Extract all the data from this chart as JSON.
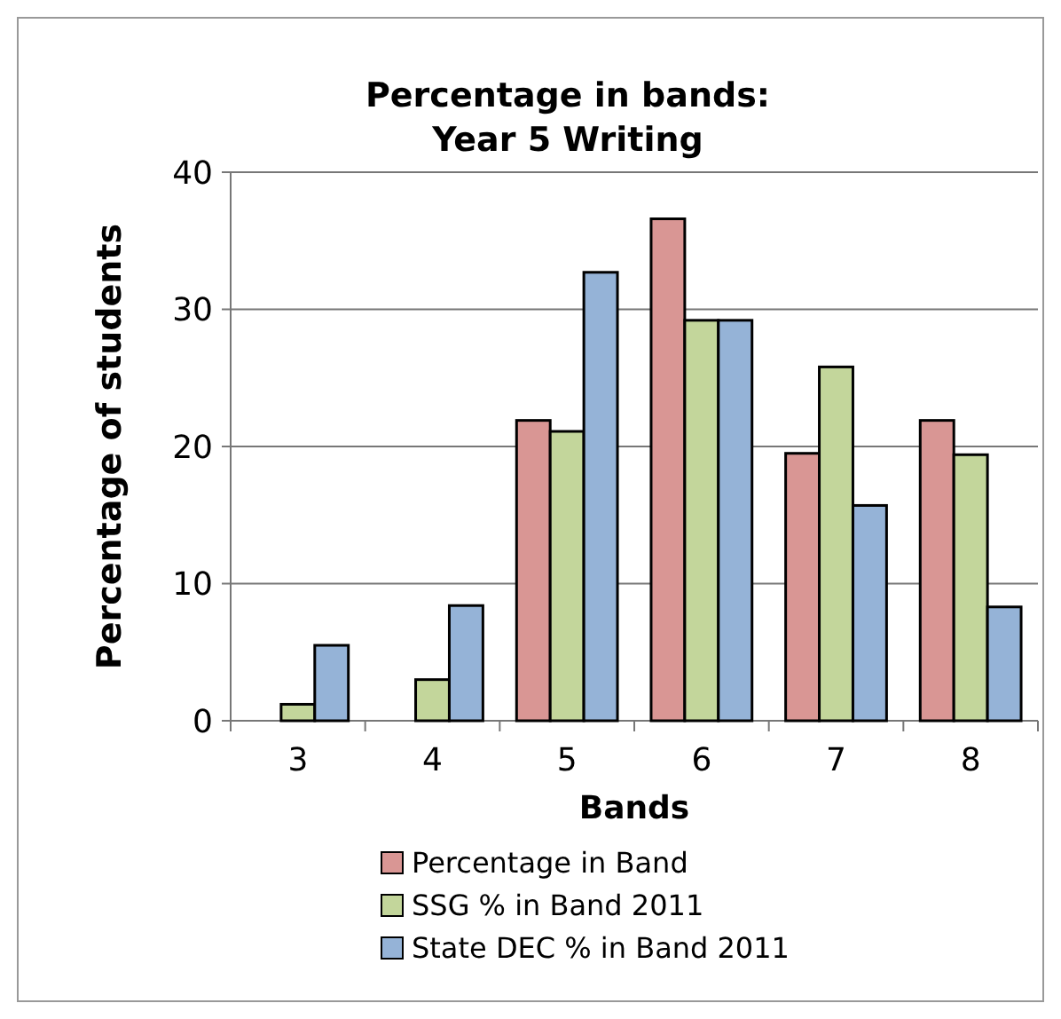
{
  "chart_data": {
    "type": "bar",
    "title": "Percentage in bands:\nYear 5 Writing",
    "xlabel": "Bands",
    "ylabel": "Percentage of students",
    "categories": [
      "3",
      "4",
      "5",
      "6",
      "7",
      "8"
    ],
    "series": [
      {
        "name": "Percentage in Band",
        "color": "#d99694",
        "values": [
          0,
          0,
          21.9,
          36.6,
          19.5,
          21.9
        ]
      },
      {
        "name": "SSG % in Band 2011",
        "color": "#c3d69b",
        "values": [
          1.2,
          3.0,
          21.1,
          29.2,
          25.8,
          19.4
        ]
      },
      {
        "name": "State DEC % in Band 2011",
        "color": "#95b3d7",
        "values": [
          5.5,
          8.4,
          32.7,
          29.2,
          15.7,
          8.3
        ]
      }
    ],
    "ylim": [
      0,
      40
    ],
    "yticks": [
      0,
      10,
      20,
      30,
      40
    ],
    "grid": "y",
    "legend": "bottom"
  }
}
